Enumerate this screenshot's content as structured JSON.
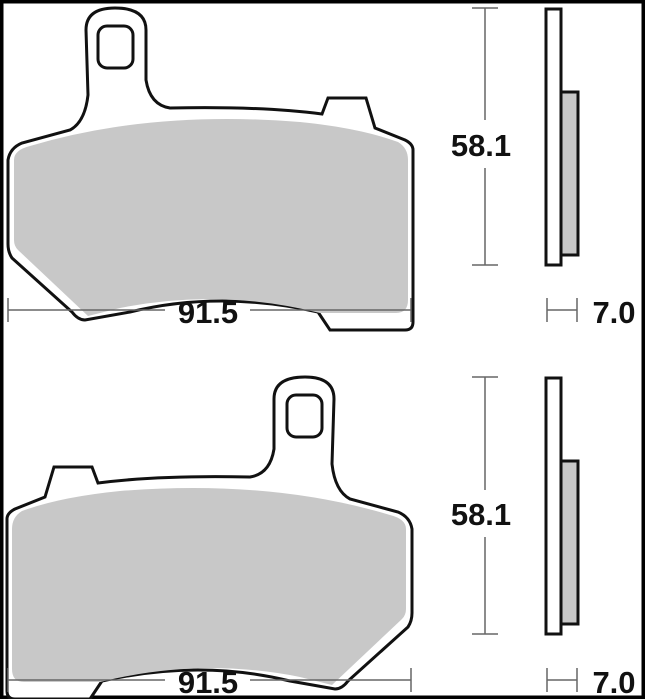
{
  "colors": {
    "outline": "#111111",
    "friction": "#c8c8c8",
    "dimension_line": "#666666",
    "frame": "#000000"
  },
  "views": [
    {
      "height_label": "58.1",
      "width_label": "91.5",
      "thickness_label": "7.0",
      "ear_side": "left"
    },
    {
      "height_label": "58.1",
      "width_label": "91.5",
      "thickness_label": "7.0",
      "ear_side": "right"
    }
  ]
}
